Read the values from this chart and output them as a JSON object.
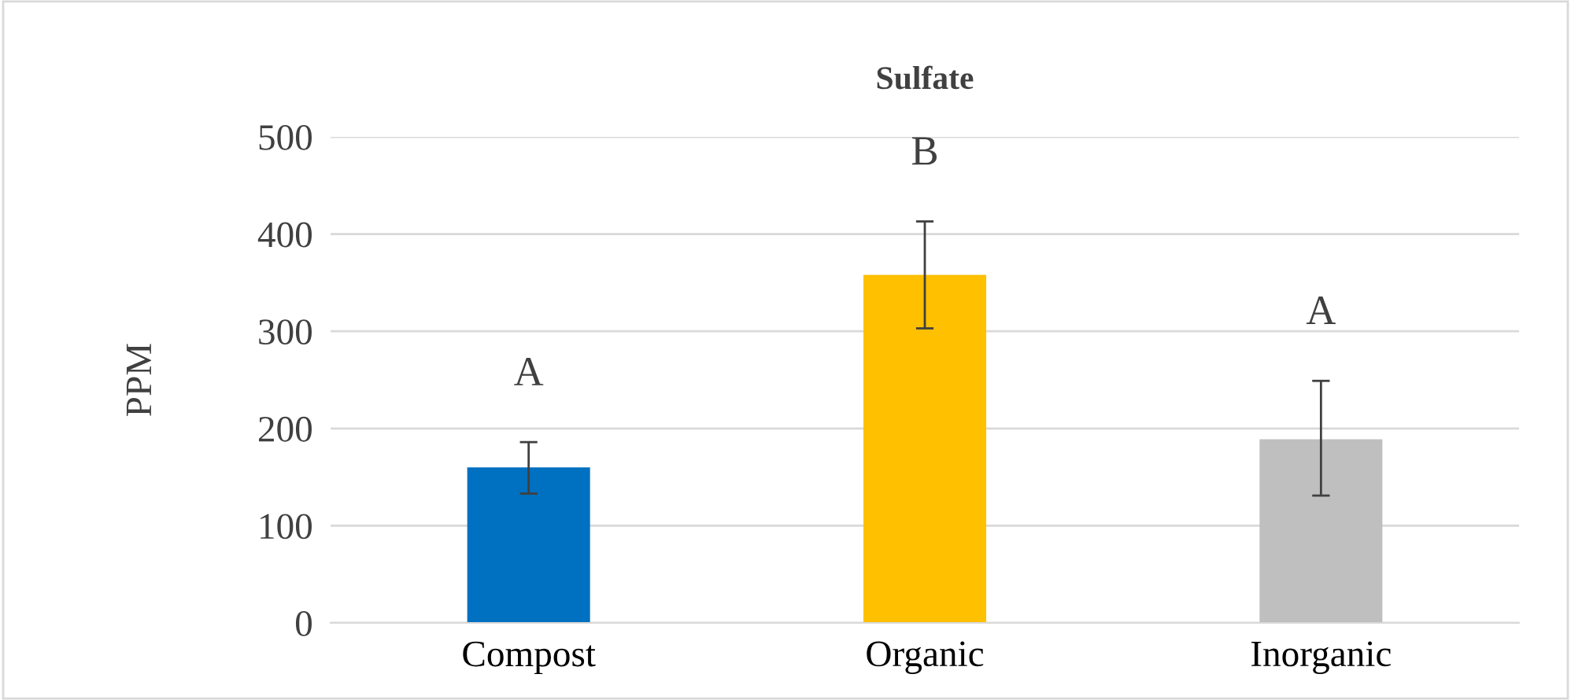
{
  "chart_data": {
    "type": "bar",
    "title": "Sulfate",
    "ylabel": "PPM",
    "categories": [
      "Compost",
      "Organic",
      "Inorganic"
    ],
    "values": [
      160,
      358,
      189
    ],
    "colors": [
      "#0070c0",
      "#ffc000",
      "#bfbfbf"
    ],
    "errors": [
      [
        133,
        186
      ],
      [
        303,
        413
      ],
      [
        131,
        249
      ]
    ],
    "ylim": [
      0,
      500
    ],
    "yticks": [
      0,
      100,
      200,
      300,
      400,
      500
    ],
    "grid": "y",
    "legend": false,
    "annotations": [
      "A",
      "B",
      "A"
    ]
  }
}
